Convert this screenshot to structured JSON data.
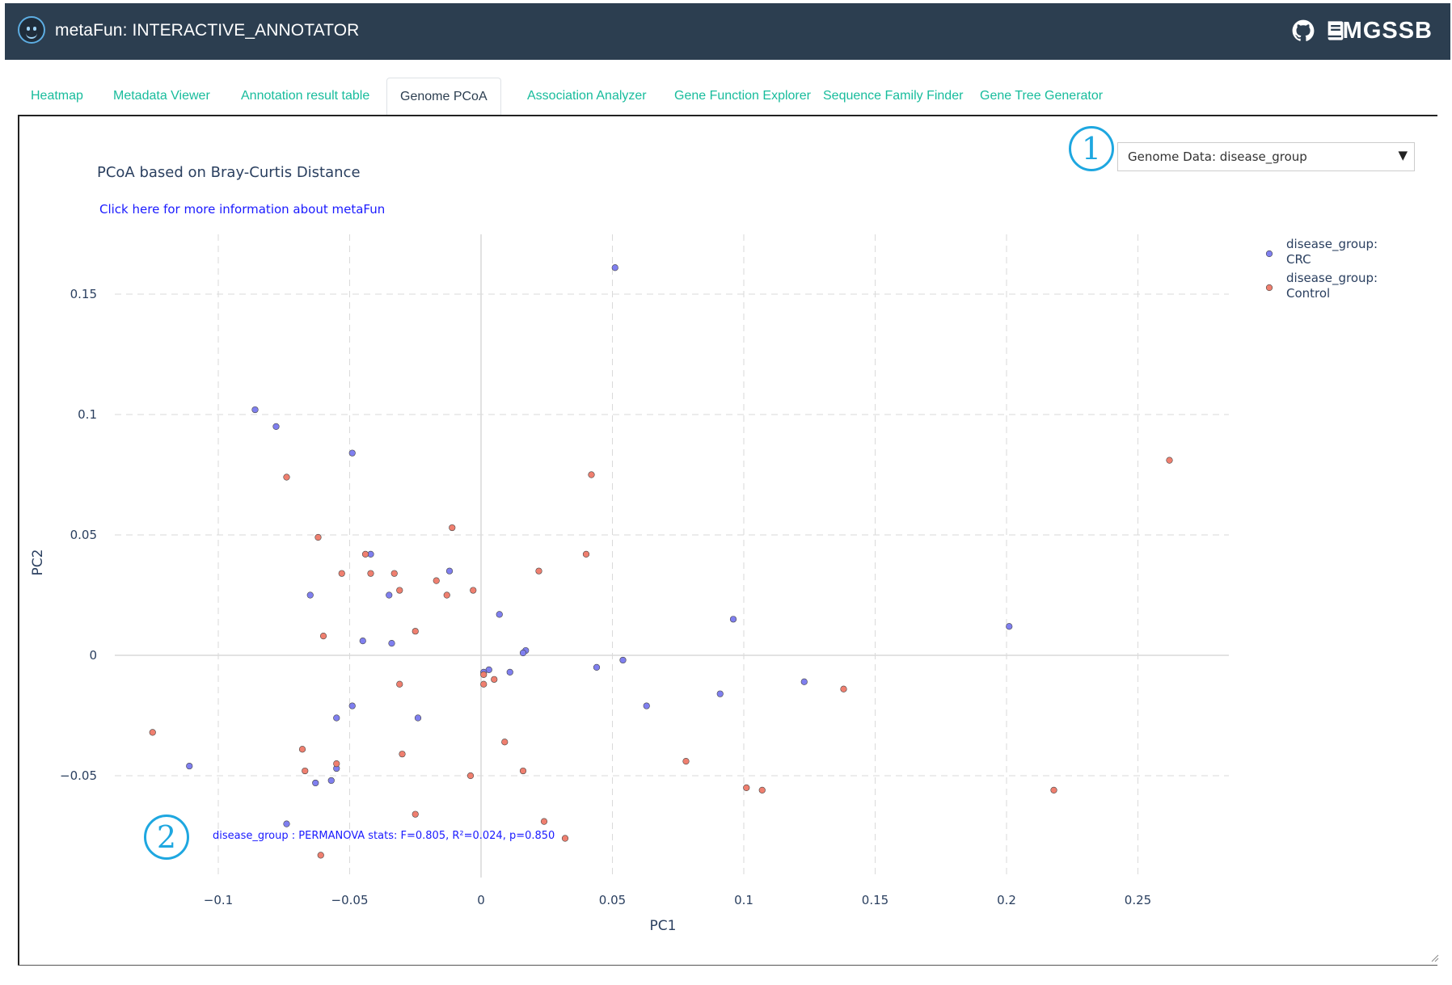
{
  "app": {
    "title": "metaFun: INTERACTIVE_ANNOTATOR",
    "brand": "MGSSB",
    "icons": [
      "smiley-logo-icon",
      "github-icon",
      "book-icon"
    ]
  },
  "tabs": [
    {
      "label": "Heatmap",
      "active": false
    },
    {
      "label": "Metadata Viewer",
      "active": false
    },
    {
      "label": "Annotation result table",
      "active": false
    },
    {
      "label": "Genome PCoA",
      "active": true
    },
    {
      "label": "Association Analyzer",
      "active": false
    },
    {
      "label": "Gene Function Explorer",
      "active": false
    },
    {
      "label": "Sequence Family Finder",
      "active": false
    },
    {
      "label": "Gene Tree Generator",
      "active": false
    }
  ],
  "dropdown": {
    "selected": "Genome Data: disease_group",
    "arrow": "▼"
  },
  "callouts": {
    "one": "1",
    "two": "2"
  },
  "plot": {
    "title": "PCoA based on Bray-Curtis Distance",
    "info_link": "Click here for more information about metaFun",
    "permanova": "disease_group : PERMANOVA stats: F=0.805, R²=0.024, p=0.850"
  },
  "chart_data": {
    "type": "scatter",
    "xlabel": "PC1",
    "ylabel": "PC2",
    "xlim": [
      -0.125,
      0.282
    ],
    "ylim": [
      -0.085,
      0.175
    ],
    "xticks": [
      -0.1,
      -0.05,
      0,
      0.05,
      0.1,
      0.15,
      0.2,
      0.25
    ],
    "xtick_labels": [
      "−0.1",
      "−0.05",
      "0",
      "0.05",
      "0.1",
      "0.15",
      "0.2",
      "0.25"
    ],
    "yticks": [
      -0.05,
      0,
      0.05,
      0.1,
      0.15
    ],
    "ytick_labels": [
      "−0.05",
      "0",
      "0.05",
      "0.1",
      "0.15"
    ],
    "grid": true,
    "legend_position": "top-right",
    "series": [
      {
        "name": "disease_group: CRC",
        "color": "#7f7fef",
        "points": [
          [
            0.051,
            0.161
          ],
          [
            -0.086,
            0.102
          ],
          [
            -0.078,
            0.095
          ],
          [
            -0.049,
            0.084
          ],
          [
            -0.042,
            0.042
          ],
          [
            -0.012,
            0.035
          ],
          [
            -0.065,
            0.025
          ],
          [
            -0.035,
            0.025
          ],
          [
            0.007,
            0.017
          ],
          [
            0.096,
            0.015
          ],
          [
            0.201,
            0.012
          ],
          [
            -0.045,
            0.006
          ],
          [
            -0.034,
            0.005
          ],
          [
            0.017,
            0.002
          ],
          [
            0.016,
            0.001
          ],
          [
            0.054,
            -0.002
          ],
          [
            0.044,
            -0.005
          ],
          [
            0.011,
            -0.007
          ],
          [
            0.003,
            -0.006
          ],
          [
            0.001,
            -0.007
          ],
          [
            0.123,
            -0.011
          ],
          [
            0.091,
            -0.016
          ],
          [
            0.063,
            -0.021
          ],
          [
            -0.049,
            -0.021
          ],
          [
            -0.024,
            -0.026
          ],
          [
            -0.055,
            -0.026
          ],
          [
            -0.111,
            -0.046
          ],
          [
            -0.055,
            -0.047
          ],
          [
            -0.057,
            -0.052
          ],
          [
            -0.063,
            -0.053
          ],
          [
            -0.074,
            -0.07
          ]
        ]
      },
      {
        "name": "disease_group: Control",
        "color": "#ef7f6f",
        "points": [
          [
            0.262,
            0.081
          ],
          [
            -0.074,
            0.074
          ],
          [
            0.042,
            0.075
          ],
          [
            -0.011,
            0.053
          ],
          [
            -0.062,
            0.049
          ],
          [
            -0.044,
            0.042
          ],
          [
            0.04,
            0.042
          ],
          [
            0.022,
            0.035
          ],
          [
            -0.053,
            0.034
          ],
          [
            -0.042,
            0.034
          ],
          [
            -0.033,
            0.034
          ],
          [
            -0.017,
            0.031
          ],
          [
            -0.031,
            0.027
          ],
          [
            -0.003,
            0.027
          ],
          [
            -0.013,
            0.025
          ],
          [
            -0.025,
            0.01
          ],
          [
            -0.06,
            0.008
          ],
          [
            0.001,
            -0.008
          ],
          [
            0.005,
            -0.01
          ],
          [
            0.001,
            -0.012
          ],
          [
            -0.031,
            -0.012
          ],
          [
            0.138,
            -0.014
          ],
          [
            -0.125,
            -0.032
          ],
          [
            0.009,
            -0.036
          ],
          [
            -0.068,
            -0.039
          ],
          [
            -0.03,
            -0.041
          ],
          [
            0.078,
            -0.044
          ],
          [
            -0.055,
            -0.045
          ],
          [
            0.016,
            -0.048
          ],
          [
            -0.067,
            -0.048
          ],
          [
            -0.004,
            -0.05
          ],
          [
            0.101,
            -0.055
          ],
          [
            0.107,
            -0.056
          ],
          [
            0.218,
            -0.056
          ],
          [
            -0.025,
            -0.066
          ],
          [
            0.024,
            -0.069
          ],
          [
            0.032,
            -0.076
          ],
          [
            -0.061,
            -0.083
          ]
        ]
      }
    ]
  }
}
